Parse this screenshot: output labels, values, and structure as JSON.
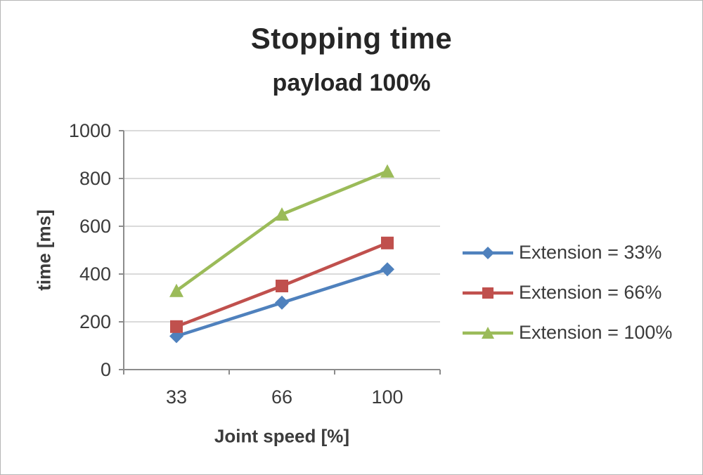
{
  "chart": {
    "title": "Stopping time",
    "subtitle": "payload 100%"
  },
  "chart_data": {
    "type": "line",
    "categories": [
      "33",
      "66",
      "100"
    ],
    "series": [
      {
        "name": "Extension = 33%",
        "values": [
          140,
          280,
          420
        ],
        "color": "#4F81BD",
        "marker": "diamond"
      },
      {
        "name": "Extension = 66%",
        "values": [
          180,
          350,
          530
        ],
        "color": "#C0504D",
        "marker": "square"
      },
      {
        "name": "Extension = 100%",
        "values": [
          330,
          650,
          830
        ],
        "color": "#9BBB59",
        "marker": "triangle"
      }
    ],
    "xlabel": "Joint speed [%]",
    "ylabel": "time [ms]",
    "ylim": [
      0,
      1000
    ],
    "yticks": [
      0,
      200,
      400,
      600,
      800,
      1000
    ],
    "grid": true,
    "legend_position": "right",
    "colors": {
      "gridline": "#cdcdcd",
      "axis": "#8c8c8c",
      "text": "#3b3b3b"
    }
  }
}
